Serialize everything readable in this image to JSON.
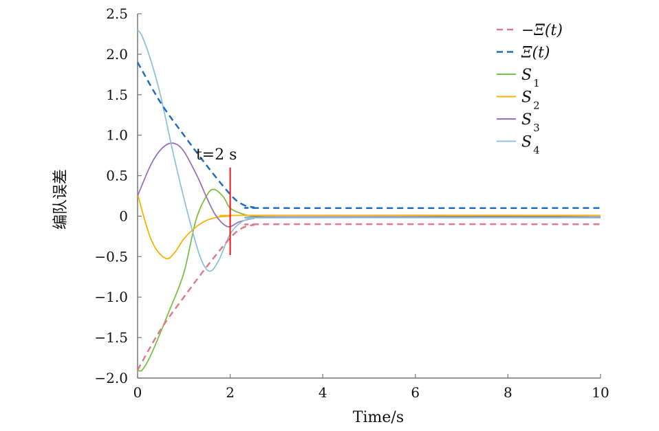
{
  "chart_data": {
    "type": "line",
    "title": "",
    "xlabel": "Time/s",
    "ylabel": "编队误差",
    "xlim": [
      0,
      10
    ],
    "ylim": [
      -2.0,
      2.5
    ],
    "xticks": [
      0,
      2,
      4,
      6,
      8,
      10
    ],
    "xtick_labels": [
      "0",
      "2",
      "4",
      "6",
      "8",
      "10"
    ],
    "yticks": [
      2.5,
      2.0,
      1.5,
      1.0,
      0.5,
      0,
      -0.5,
      -1.0,
      -1.5,
      -2.0
    ],
    "ytick_labels": [
      "2.5",
      "2.0",
      "1.5",
      "1.0",
      "0.5",
      "0",
      "−0.5",
      "−1.0",
      "−1.5",
      "−2.0"
    ],
    "grid": false,
    "legend_position": "top-right",
    "annotation": {
      "text": "t=2 s",
      "x": 2,
      "y_range": [
        -0.48,
        0.6
      ],
      "color": "#e8141c"
    },
    "series": [
      {
        "name": "−Ξ(t)",
        "color": "#e07a8e",
        "dash": true,
        "x": [
          0,
          0.5,
          1.0,
          1.5,
          2.0,
          2.25,
          2.5,
          3,
          10
        ],
        "y": [
          -1.9,
          -1.4,
          -1.0,
          -0.62,
          -0.27,
          -0.15,
          -0.11,
          -0.1,
          -0.1
        ]
      },
      {
        "name": "Ξ(t)",
        "color": "#1f6dbf",
        "dash": true,
        "x": [
          0,
          0.5,
          1.0,
          1.5,
          2.0,
          2.25,
          2.5,
          3,
          10
        ],
        "y": [
          1.9,
          1.4,
          1.0,
          0.62,
          0.27,
          0.15,
          0.11,
          0.1,
          0.1
        ]
      },
      {
        "name": "S1",
        "sub": "1",
        "color": "#7cc043",
        "dash": false,
        "x": [
          0,
          0.1,
          0.3,
          0.67,
          1.0,
          1.26,
          1.5,
          1.65,
          1.85,
          2.0,
          2.25,
          2.5,
          3,
          5,
          8,
          10
        ],
        "y": [
          -1.9,
          -1.9,
          -1.7,
          -1.19,
          -0.7,
          -0.05,
          0.26,
          0.33,
          0.24,
          0.1,
          0.03,
          0.0,
          -0.01,
          -0.01,
          0.0,
          -0.01
        ]
      },
      {
        "name": "S2",
        "sub": "2",
        "color": "#f5b400",
        "dash": false,
        "x": [
          0,
          0.3,
          0.6,
          0.8,
          1.0,
          1.25,
          1.5,
          1.75,
          2.0,
          2.5,
          10
        ],
        "y": [
          0.27,
          -0.3,
          -0.52,
          -0.45,
          -0.28,
          -0.14,
          -0.05,
          -0.01,
          0.0,
          0.01,
          0.01
        ]
      },
      {
        "name": "S3",
        "sub": "3",
        "color": "#9b6fb8",
        "dash": false,
        "x": [
          0,
          0.3,
          0.55,
          0.78,
          1.0,
          1.3,
          1.5,
          1.7,
          1.95,
          2.2,
          2.5,
          3,
          10
        ],
        "y": [
          0.25,
          0.65,
          0.85,
          0.9,
          0.8,
          0.48,
          0.22,
          0.0,
          -0.13,
          -0.07,
          -0.03,
          -0.01,
          -0.01
        ]
      },
      {
        "name": "S4",
        "sub": "4",
        "color": "#8fc2d8",
        "dash": false,
        "x": [
          0,
          0.1,
          0.3,
          0.5,
          0.8,
          1.1,
          1.35,
          1.55,
          1.75,
          2.0,
          2.25,
          2.5,
          3,
          10
        ],
        "y": [
          2.3,
          2.22,
          1.9,
          1.48,
          0.7,
          0.0,
          -0.5,
          -0.68,
          -0.55,
          -0.22,
          -0.07,
          -0.03,
          -0.02,
          -0.02
        ]
      }
    ]
  }
}
